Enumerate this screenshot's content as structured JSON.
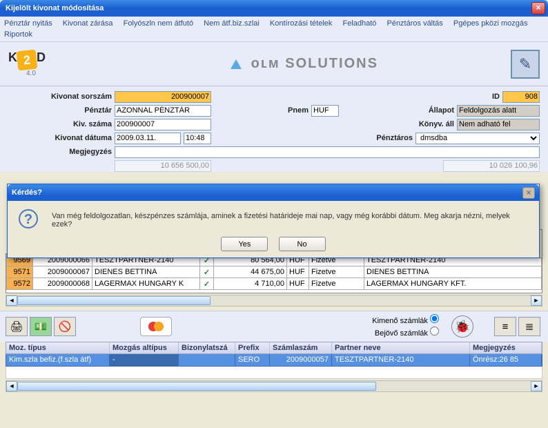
{
  "window": {
    "title": "Kijelölt kivonat módosítása"
  },
  "menu": {
    "items": [
      "Pénztár nyitás",
      "Kivonat zárása",
      "Folyószln nem átfutó",
      "Nem átf.biz.szlai",
      "Kontírozási tételek",
      "Feladható",
      "Pénztáros váltás",
      "Pgépes pközi mozgás",
      "Riportok"
    ]
  },
  "logos": {
    "k2d_prefix": "K",
    "k2d_mid": "2",
    "k2d_suffix": "D",
    "k2d_ver": "4.0",
    "dlm_text": "oʟᴍ SOLUTIONS"
  },
  "form": {
    "kivonat_sorszam_label": "Kivonat sorszám",
    "kivonat_sorszam": "200900007",
    "id_label": "ID",
    "id": "908",
    "penztar_label": "Pénztár",
    "penztar": "AZONNAL PÉNZTÁR",
    "pnem_label": "Pnem",
    "pnem": "HUF",
    "allapot_label": "Állapot",
    "allapot": "Feldolgozás alatt",
    "kiv_szama_label": "Kiv. száma",
    "kiv_szama": "200900007",
    "konyv_all_label": "Könyv. áll",
    "konyv_all": "Nem adható fel",
    "kivonat_datuma_label": "Kivonat dátuma",
    "kivonat_datuma": "2009.03.11.",
    "kivonat_time": "10:48",
    "penztaros_label": "Pénztáros",
    "penztaros": "dmsdba",
    "megjegyzes_label": "Megjegyzés",
    "megjegyzes": "",
    "nyito_hidden": "10 656 500,00",
    "zaro_hidden": "10 026 100,96"
  },
  "dialog": {
    "title": "Kérdés?",
    "text": "Van még feldolgozatlan, készpénzes számlája, aminek a fizetési határideje mai nap, vagy még korábbi dátum. Meg akarja nézni, melyek ezek?",
    "yes": "Yes",
    "no": "No"
  },
  "table": {
    "rows": [
      {
        "n": "9569",
        "id": "2009000066",
        "partner": "TESZTPARTNER-2140",
        "chk": "✓",
        "amount": "80 564,00",
        "cur": "HUF",
        "status": "Fizetve",
        "partner2": "TESZTPARTNER-2140"
      },
      {
        "n": "9571",
        "id": "2009000067",
        "partner": "DIENES BETTINA",
        "chk": "✓",
        "amount": "44 675,00",
        "cur": "HUF",
        "status": "Fizetve",
        "partner2": "DIENES BETTINA"
      },
      {
        "n": "9572",
        "id": "2009000068",
        "partner": "LAGERMAX HUNGARY K",
        "chk": "✓",
        "amount": "4 710,00",
        "cur": "HUF",
        "status": "Fizetve",
        "partner2": "LAGERMAX HUNGARY KFT."
      }
    ]
  },
  "toolbar": {
    "kimeno": "Kimenő számlák",
    "bejovo": "Bejövő számlák"
  },
  "bottom": {
    "headers": {
      "moz_tipus": "Moz. típus",
      "mozgas_altipus": "Mozgás altípus",
      "bizonylat": "Bizonylatszá",
      "prefix": "Prefix",
      "szamlaszam": "Számlaszám",
      "partner": "Partner neve",
      "megjegyzes": "Megjegyzés"
    },
    "row": {
      "moz_tipus": "Kim.szla befiz.(f.szla átf)",
      "mozgas_altipus": "-",
      "bizonylat": "",
      "prefix": "SERO",
      "szamlaszam": "2009000057",
      "partner": "TESZTPARTNER-2140",
      "megjegyzes": "Önrész:26 85"
    }
  },
  "colors": {
    "titlebar": "#1b5fd0",
    "yellow": "#ffc64a",
    "orange": "#f8b050",
    "selection": "#5690e0",
    "panel": "#e8ecf8"
  }
}
